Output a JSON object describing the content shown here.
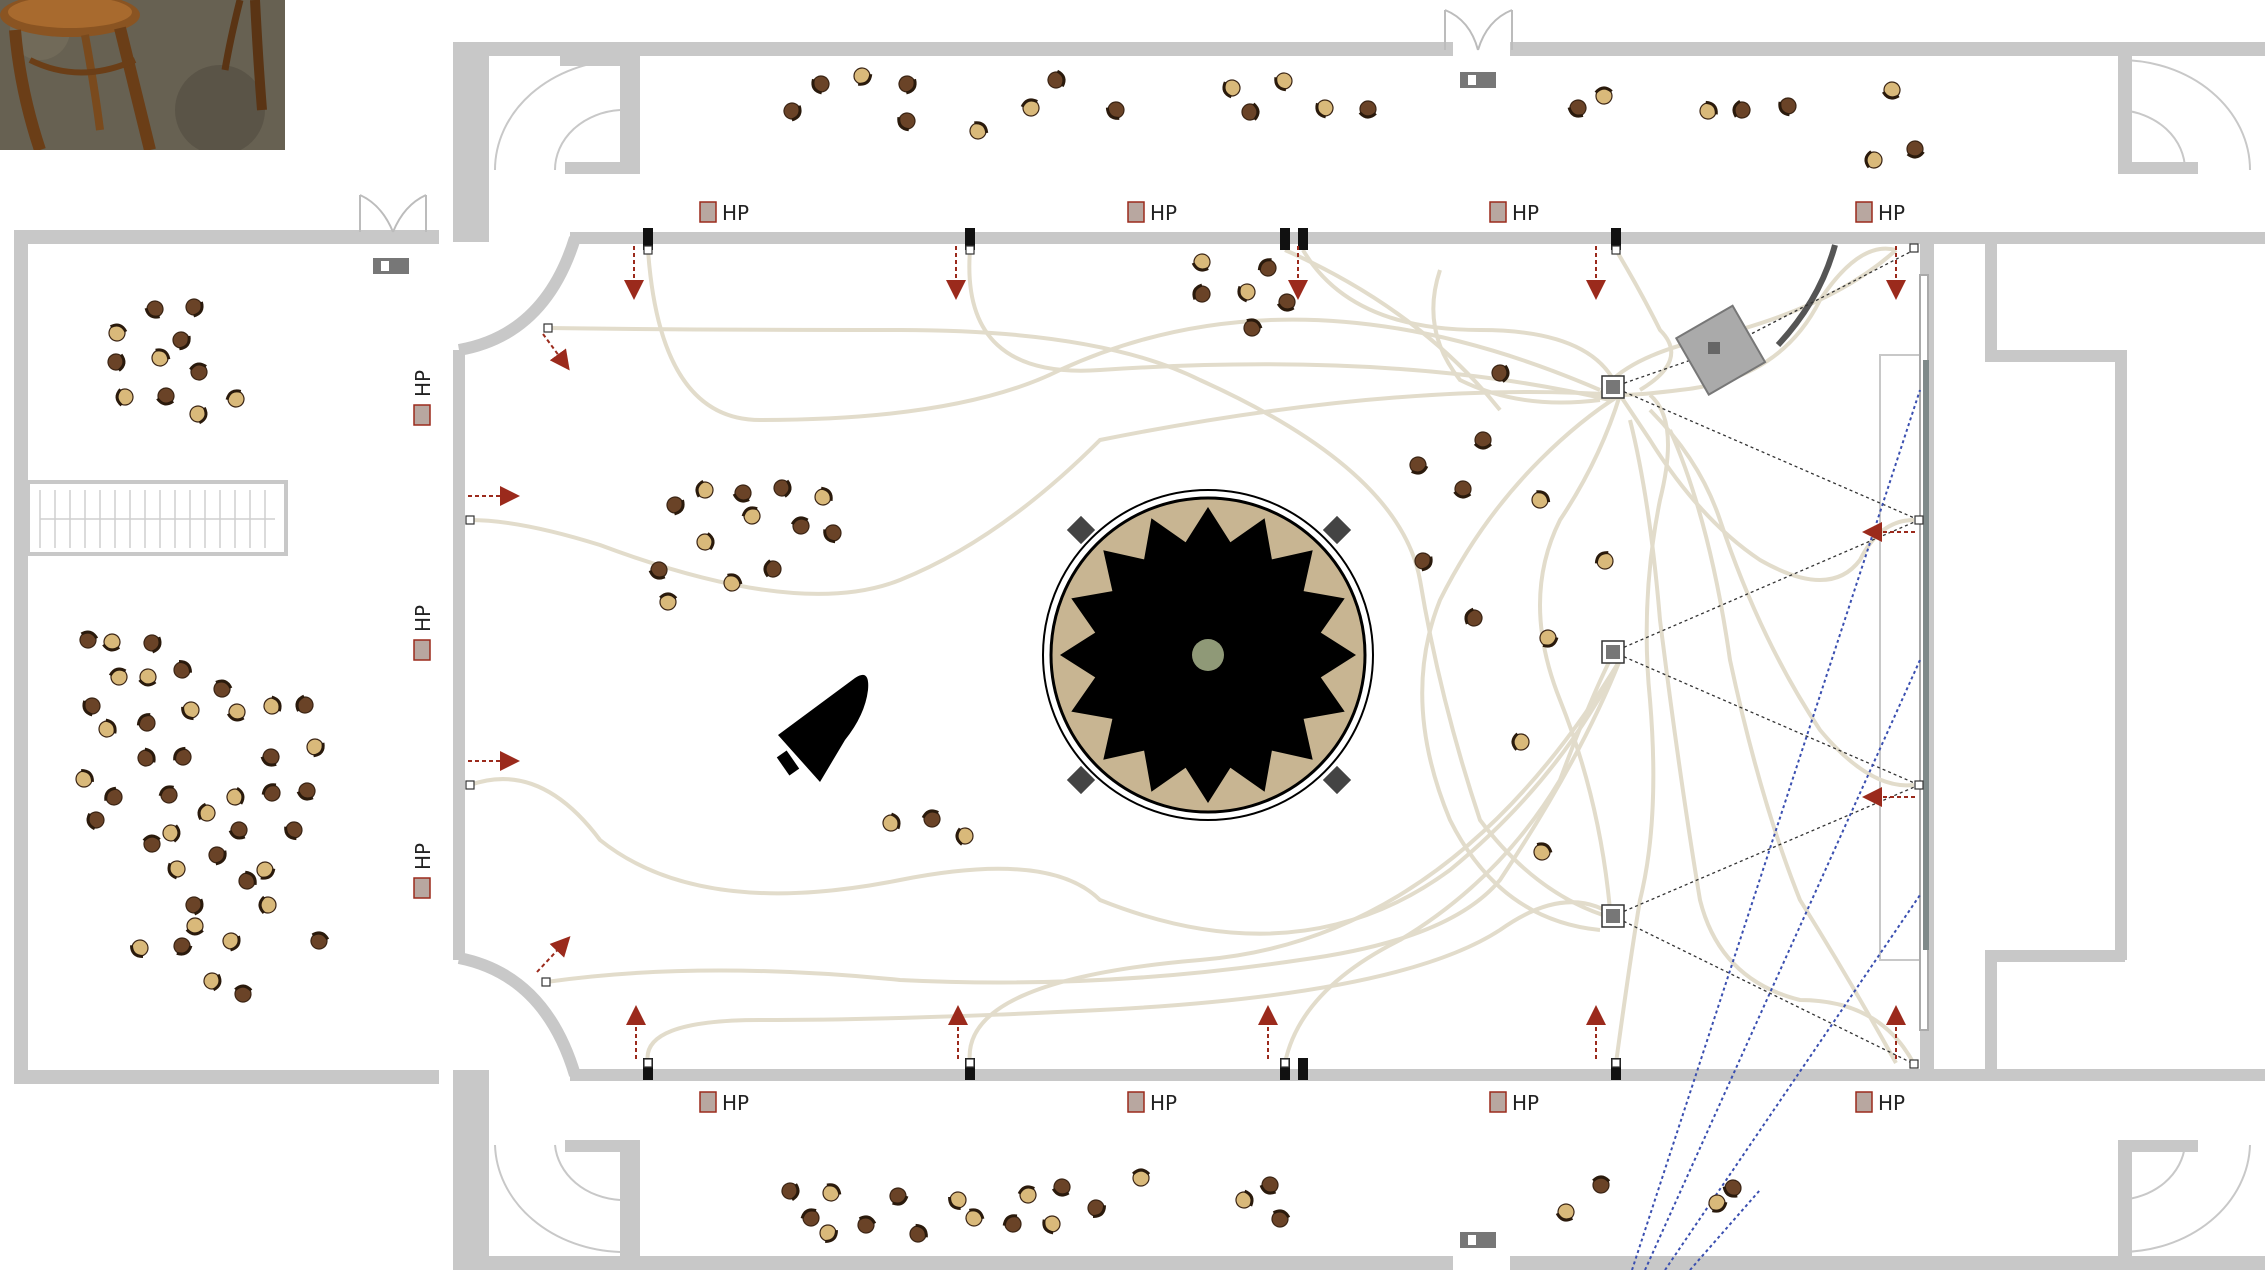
{
  "photo": {
    "icon": "bentwood-chair-photo"
  },
  "labels": {
    "speaker_label": "HP"
  },
  "icons": {
    "exit": "emergency-exit-sign-icon",
    "speaker": "loudspeaker-hp-icon",
    "chair": "chair-icon",
    "piano": "grand-piano-icon",
    "stage": "circular-stage-icon",
    "projector": "projector-icon",
    "camera": "camera-icon",
    "cable": "cable-icon",
    "arrow": "flow-arrow-icon"
  },
  "colors": {
    "wall": "#c8c8c8",
    "cable": "#e2dccb",
    "chair_light": "#d9b97a",
    "chair_dark": "#6a4327",
    "arrow": "#9b2a1c",
    "stage_ring": "#c8b592",
    "speaker": "#b8a7a0",
    "beam": "#3a4fb0"
  }
}
